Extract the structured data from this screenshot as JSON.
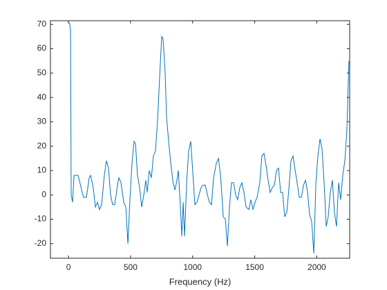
{
  "chart_data": {
    "type": "line",
    "x_label": "Frequency (Hz)",
    "x": [
      0,
      11,
      17,
      22,
      33,
      45,
      78,
      111,
      122,
      145,
      167,
      178,
      200,
      217,
      234,
      250,
      267,
      289,
      306,
      323,
      339,
      356,
      373,
      395,
      406,
      423,
      445,
      462,
      479,
      495,
      512,
      528,
      540,
      556,
      573,
      590,
      607,
      623,
      634,
      651,
      668,
      684,
      701,
      718,
      735,
      751,
      762,
      779,
      790,
      807,
      824,
      840,
      857,
      874,
      885,
      902,
      913,
      924,
      935,
      952,
      968,
      985,
      1002,
      1018,
      1035,
      1052,
      1068,
      1085,
      1102,
      1119,
      1135,
      1152,
      1169,
      1191,
      1208,
      1225,
      1247,
      1264,
      1280,
      1297,
      1313,
      1330,
      1347,
      1363,
      1380,
      1397,
      1414,
      1430,
      1453,
      1469,
      1486,
      1503,
      1519,
      1541,
      1558,
      1575,
      1592,
      1608,
      1625,
      1642,
      1659,
      1675,
      1692,
      1709,
      1725,
      1742,
      1759,
      1776,
      1792,
      1809,
      1826,
      1842,
      1859,
      1876,
      1893,
      1909,
      1926,
      1942,
      1959,
      1976,
      1993,
      2009,
      2026,
      2042,
      2059,
      2076,
      2092,
      2109,
      2126,
      2142,
      2159,
      2176,
      2192,
      2209,
      2226,
      2242,
      2259
    ],
    "series": [
      {
        "color": "#0072bd",
        "values": [
          71,
          70,
          67,
          0,
          -3,
          8,
          8,
          1,
          -1,
          -1,
          7,
          8,
          3,
          -5,
          -3,
          -6,
          -4,
          8,
          14,
          11,
          0,
          -4,
          -4,
          4,
          7,
          5,
          -3,
          -5,
          -20,
          -2,
          13,
          22,
          21,
          8,
          3,
          -5,
          0,
          6,
          1,
          10,
          7,
          16,
          18,
          31,
          49,
          65,
          64,
          50,
          32,
          22,
          13,
          6,
          2,
          6,
          10,
          -5,
          -17,
          -3,
          -17,
          5,
          18,
          22,
          9,
          -4,
          -3,
          0,
          3,
          4,
          4,
          0,
          -3,
          -4,
          7,
          13,
          15,
          8,
          -9,
          -10,
          -21,
          -5,
          5,
          5,
          0,
          -2,
          3,
          5,
          1,
          -5,
          -6,
          -2,
          -6,
          -3,
          -1,
          5,
          16,
          17,
          12,
          6,
          1,
          3,
          4,
          10,
          11,
          1,
          1,
          -9,
          -7,
          3,
          14,
          16,
          10,
          5,
          -1,
          -1,
          4,
          6,
          1,
          -8,
          -11,
          -24,
          5,
          16,
          23,
          19,
          5,
          -13,
          -9,
          1,
          6,
          -7,
          -13,
          5,
          -2,
          8,
          14,
          26,
          55
        ]
      }
    ],
    "xlim": [
      -145,
      2265
    ],
    "ylim": [
      -26,
      71.5
    ],
    "xticks": [
      0,
      500,
      1000,
      1500,
      2000
    ],
    "yticks": [
      -20,
      -10,
      0,
      10,
      20,
      30,
      40,
      50,
      60,
      70
    ]
  }
}
